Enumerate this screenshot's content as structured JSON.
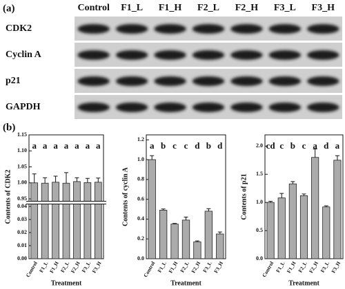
{
  "panels": [
    "(a)",
    "(b)"
  ],
  "blot": {
    "lanes": [
      "Control",
      "F1_L",
      "F1_H",
      "F2_L",
      "F2_H",
      "F3_L",
      "F3_H"
    ],
    "rows": [
      "CDK2",
      "Cyclin A",
      "p21",
      "GAPDH"
    ]
  },
  "chart_data": [
    {
      "type": "bar",
      "ylabel": "Contents of CDK2",
      "xlabel": "Treatment",
      "color": "#ababab",
      "categories": [
        "Control",
        "F1_L",
        "F1_H",
        "F2_L",
        "F2_H",
        "F3_L",
        "F3_H"
      ],
      "values": [
        1.0,
        0.999,
        1.002,
        0.999,
        1.004,
        1.001,
        1.002
      ],
      "errors": [
        0.028,
        0.017,
        0.019,
        0.033,
        0.012,
        0.013,
        0.013
      ],
      "letters": [
        "a",
        "a",
        "a",
        "a",
        "a",
        "a",
        "a"
      ],
      "ylim": [
        0,
        1.15
      ],
      "ybreak": [
        0.04,
        0.95
      ],
      "yticks": [
        {
          "value": 0,
          "label": "0.00"
        },
        {
          "value": 0.01,
          "label": "0.01"
        },
        {
          "value": 0.02,
          "label": "0.02"
        },
        {
          "value": 0.03,
          "label": "0.03"
        },
        {
          "value": 0.04,
          "label": "0.04"
        },
        {
          "value": 0.95,
          "label": "0.95"
        },
        {
          "value": 1,
          "label": "1.00"
        },
        {
          "value": 1.05,
          "label": "1.05"
        },
        {
          "value": 1.1,
          "label": "1.10"
        },
        {
          "value": 1.15,
          "label": "1.15"
        }
      ]
    },
    {
      "type": "bar",
      "ylabel": "Contents of cyclin A",
      "xlabel": "Treatment",
      "color": "#ababab",
      "categories": [
        "Control",
        "F1_L",
        "F1_H",
        "F2_L",
        "F2_H",
        "F3_L",
        "F3_H"
      ],
      "values": [
        1.0,
        0.49,
        0.35,
        0.39,
        0.17,
        0.48,
        0.25
      ],
      "errors": [
        0.04,
        0.012,
        0.006,
        0.03,
        0.01,
        0.025,
        0.02
      ],
      "letters": [
        "a",
        "b",
        "c",
        "c",
        "d",
        "b",
        "d"
      ],
      "ylim": [
        0,
        1.25
      ],
      "yticks": [
        {
          "value": 0,
          "label": "0.0"
        },
        0.2,
        0.4,
        0.6,
        0.8,
        {
          "value": 1,
          "label": "1.0"
        },
        1.2
      ]
    },
    {
      "type": "bar",
      "ylabel": "Contents of p21",
      "xlabel": "Treatment",
      "color": "#ababab",
      "categories": [
        "Control",
        "F1_L",
        "F1_H",
        "F2_L",
        "F2_H",
        "F3_L",
        "F3_H"
      ],
      "values": [
        1.0,
        1.08,
        1.33,
        1.12,
        1.8,
        0.92,
        1.75
      ],
      "errors": [
        0.02,
        0.08,
        0.04,
        0.03,
        0.15,
        0.02,
        0.08
      ],
      "letters": [
        "cd",
        "c",
        "b",
        "c",
        "a",
        "d",
        "a"
      ],
      "ylim": [
        0,
        2.2
      ],
      "yticks": [
        {
          "value": 0,
          "label": "0.0"
        },
        0.5,
        {
          "value": 1,
          "label": "1.0"
        },
        1.5,
        {
          "value": 2,
          "label": "2.0"
        }
      ]
    }
  ]
}
